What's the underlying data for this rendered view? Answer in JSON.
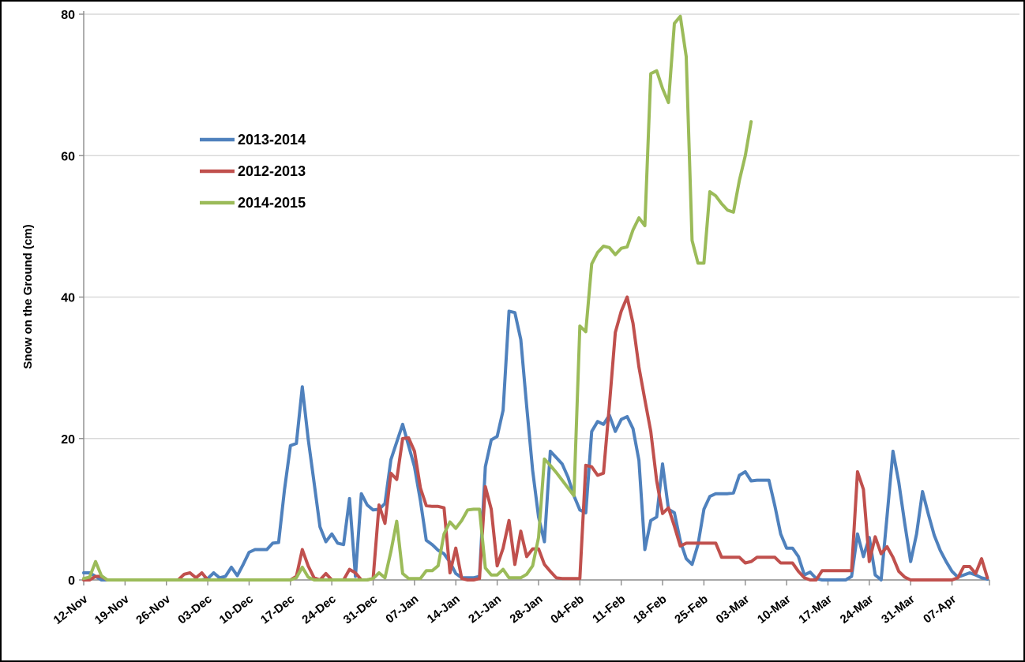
{
  "chart_data": {
    "type": "line",
    "title": "",
    "xlabel": "",
    "ylabel": "Snow on the Ground (cm)",
    "ylim": [
      0,
      80
    ],
    "yticks": [
      0,
      20,
      40,
      60,
      80
    ],
    "grid": "horizontal",
    "legend_position": "upper-left-inside",
    "x_tick_interval_days": 7,
    "x_total_days": 154,
    "x_tick_labels": [
      "12-Nov",
      "19-Nov",
      "26-Nov",
      "03-Dec",
      "10-Dec",
      "17-Dec",
      "24-Dec",
      "31-Dec",
      "07-Jan",
      "14-Jan",
      "21-Jan",
      "28-Jan",
      "04-Feb",
      "11-Feb",
      "18-Feb",
      "25-Feb",
      "03-Mar",
      "10-Mar",
      "17-Mar",
      "24-Mar",
      "31-Mar",
      "07-Apr"
    ],
    "series": [
      {
        "name": "2013-2014",
        "color": "#4F81BD",
        "values": [
          1,
          1,
          0.5,
          0,
          0,
          0,
          0,
          0,
          0,
          0,
          0,
          0,
          0,
          0,
          0,
          0,
          0,
          0,
          0,
          0,
          0,
          0.2,
          1,
          0.3,
          0.5,
          1.8,
          0.6,
          2.2,
          3.9,
          4.3,
          4.3,
          4.3,
          5.2,
          5.3,
          12.8,
          19,
          19.3,
          27.3,
          20,
          13.8,
          7.5,
          5.4,
          6.5,
          5.2,
          5,
          11.5,
          0.5,
          12.2,
          10.6,
          9.9,
          10,
          10.8,
          17,
          19.5,
          22,
          19,
          16,
          11.2,
          5.6,
          5,
          4.2,
          3.7,
          2.5,
          0.9,
          0.3,
          0.3,
          0.3,
          0.5,
          16,
          19.8,
          20.3,
          24,
          38,
          37.8,
          34,
          24.5,
          15.5,
          8.9,
          5.4,
          18.2,
          17.3,
          16.4,
          14.5,
          11.9,
          9.9,
          9.5,
          21,
          22.4,
          22,
          23.3,
          21,
          22.7,
          23.1,
          21.4,
          16.9,
          4.3,
          8.4,
          8.9,
          16.4,
          10,
          9.5,
          5.5,
          3,
          2.2,
          5,
          10,
          11.8,
          12.2,
          12.2,
          12.2,
          12.3,
          14.8,
          15.3,
          14,
          14.1,
          14.1,
          14.1,
          10.5,
          6.5,
          4.5,
          4.5,
          3.3,
          0.7,
          1.1,
          0.2,
          0,
          0,
          0,
          0,
          0,
          0.5,
          6.5,
          3.3,
          6,
          0.7,
          0,
          9,
          18.2,
          13.8,
          8,
          2.6,
          6.5,
          12.5,
          9.3,
          6.3,
          4.2,
          2.6,
          1.2,
          0.4,
          0.7,
          1,
          0.7,
          0.3,
          0.1
        ]
      },
      {
        "name": "2012-2013",
        "color": "#C0504D",
        "values": [
          0,
          0,
          0.5,
          0.5,
          0,
          0,
          0,
          0,
          0,
          0,
          0,
          0,
          0,
          0,
          0,
          0,
          0,
          0.8,
          1,
          0.3,
          1,
          0,
          0,
          0,
          0,
          0,
          0,
          0,
          0,
          0,
          0,
          0,
          0,
          0,
          0,
          0,
          0.5,
          4.3,
          2,
          0.3,
          0,
          0.9,
          0,
          0,
          0,
          1.5,
          1,
          0,
          0,
          0.2,
          10.6,
          8,
          15.1,
          14.2,
          20,
          20.1,
          18.2,
          13,
          10.5,
          10.4,
          10.4,
          10.2,
          1,
          4.5,
          0.2,
          0,
          0,
          0.2,
          13.2,
          10,
          2,
          4.5,
          8.4,
          2.2,
          6.9,
          3.3,
          4.4,
          4.4,
          2.2,
          1.2,
          0.3,
          0.2,
          0.2,
          0.2,
          0.2,
          16.2,
          16,
          14.8,
          15.1,
          24.7,
          35,
          38,
          40,
          36.3,
          30.1,
          25.5,
          21,
          14,
          9.4,
          10.2,
          7.6,
          4.8,
          5.2,
          5.2,
          5.2,
          5.2,
          5.2,
          5.2,
          3.2,
          3.2,
          3.2,
          3.2,
          2.4,
          2.6,
          3.2,
          3.2,
          3.2,
          3.2,
          2.4,
          2.4,
          2.4,
          1.2,
          0.3,
          0,
          0,
          1.3,
          1.3,
          1.3,
          1.3,
          1.3,
          1.3,
          15.3,
          12.8,
          2.6,
          6.1,
          3.7,
          4.7,
          3.2,
          1.2,
          0.4,
          0,
          0,
          0,
          0,
          0,
          0,
          0,
          0,
          0.3,
          1.9,
          1.9,
          0.9,
          3,
          0.3
        ]
      },
      {
        "name": "2014-2015",
        "color": "#9BBB59",
        "values": [
          0.2,
          0.4,
          2.6,
          0.6,
          0,
          0,
          0,
          0,
          0,
          0,
          0,
          0,
          0,
          0,
          0,
          0,
          0,
          0,
          0,
          0,
          0,
          0,
          0,
          0,
          0,
          0,
          0,
          0,
          0,
          0,
          0,
          0,
          0,
          0,
          0,
          0,
          0.3,
          1.8,
          0.4,
          0,
          0,
          0,
          0,
          0,
          0,
          0,
          0,
          0,
          0,
          0.2,
          1,
          0.3,
          4,
          8.3,
          0.9,
          0.2,
          0.2,
          0.2,
          1.3,
          1.3,
          2,
          6.5,
          8.2,
          7.3,
          8.4,
          9.9,
          10,
          10,
          1.7,
          0.7,
          0.7,
          1.5,
          0.3,
          0.3,
          0.3,
          0.8,
          2,
          6,
          17.1,
          16.2,
          15.2,
          14.1,
          13,
          11.9,
          35.9,
          35.1,
          44.7,
          46.3,
          47.2,
          47,
          46,
          46.9,
          47.1,
          49.5,
          51.2,
          50.1,
          71.6,
          72,
          69.5,
          67.5,
          78.7,
          79.7,
          74,
          48,
          44.8,
          44.8,
          54.9,
          54.3,
          53.2,
          52.3,
          52,
          56.5,
          60,
          64.8,
          null,
          null,
          null,
          null,
          null,
          null,
          null,
          null,
          null,
          null,
          null,
          null,
          null,
          null,
          null,
          null,
          null,
          null,
          null,
          null,
          null,
          null,
          null,
          null,
          null,
          null,
          null,
          null,
          null,
          null,
          null,
          null,
          null,
          null,
          null,
          null,
          null,
          null,
          null,
          null
        ]
      }
    ]
  },
  "colors": {
    "background": "#FFFFFF",
    "frame_border": "#000000",
    "axis": "#8C8C8C",
    "gridline": "#D9D9D9",
    "text": "#000000"
  }
}
